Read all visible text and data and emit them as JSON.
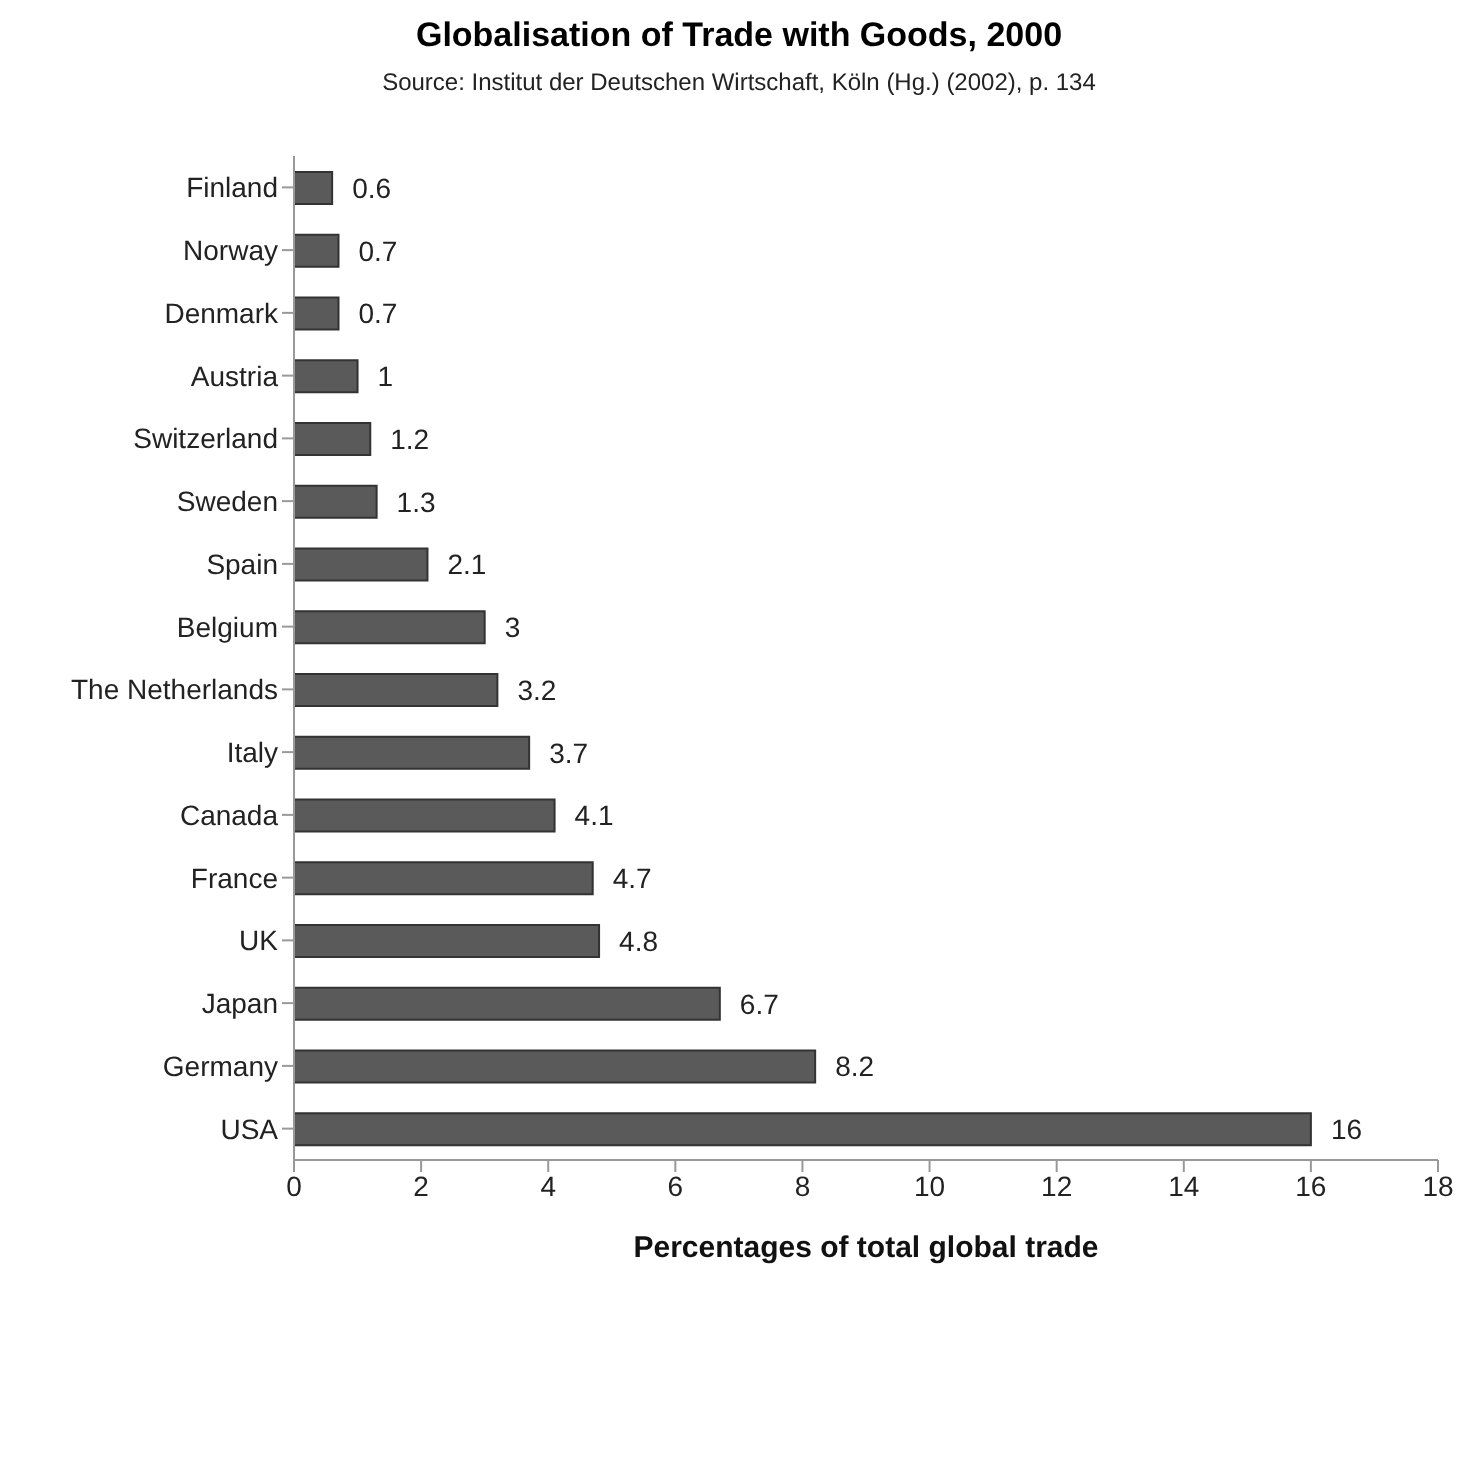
{
  "chart_data": {
    "type": "bar",
    "orientation": "horizontal",
    "title": "Globalisation of Trade with Goods, 2000",
    "subtitle": "Source: Institut der Deutschen Wirtschaft, Köln (Hg.) (2002), p. 134",
    "xlabel": "Percentages of total global trade",
    "categories": [
      "Finland",
      "Norway",
      "Denmark",
      "Austria",
      "Switzerland",
      "Sweden",
      "Spain",
      "Belgium",
      "The Netherlands",
      "Italy",
      "Canada",
      "France",
      "UK",
      "Japan",
      "Germany",
      "USA"
    ],
    "values": [
      0.6,
      0.7,
      0.7,
      1,
      1.2,
      1.3,
      2.1,
      3,
      3.2,
      3.7,
      4.1,
      4.7,
      4.8,
      6.7,
      8.2,
      16
    ],
    "color": "#5a5a5a",
    "xlim": [
      0,
      18
    ],
    "xticks": [
      0,
      2,
      4,
      6,
      8,
      10,
      12,
      14,
      16,
      18
    ],
    "data_labels": true
  }
}
